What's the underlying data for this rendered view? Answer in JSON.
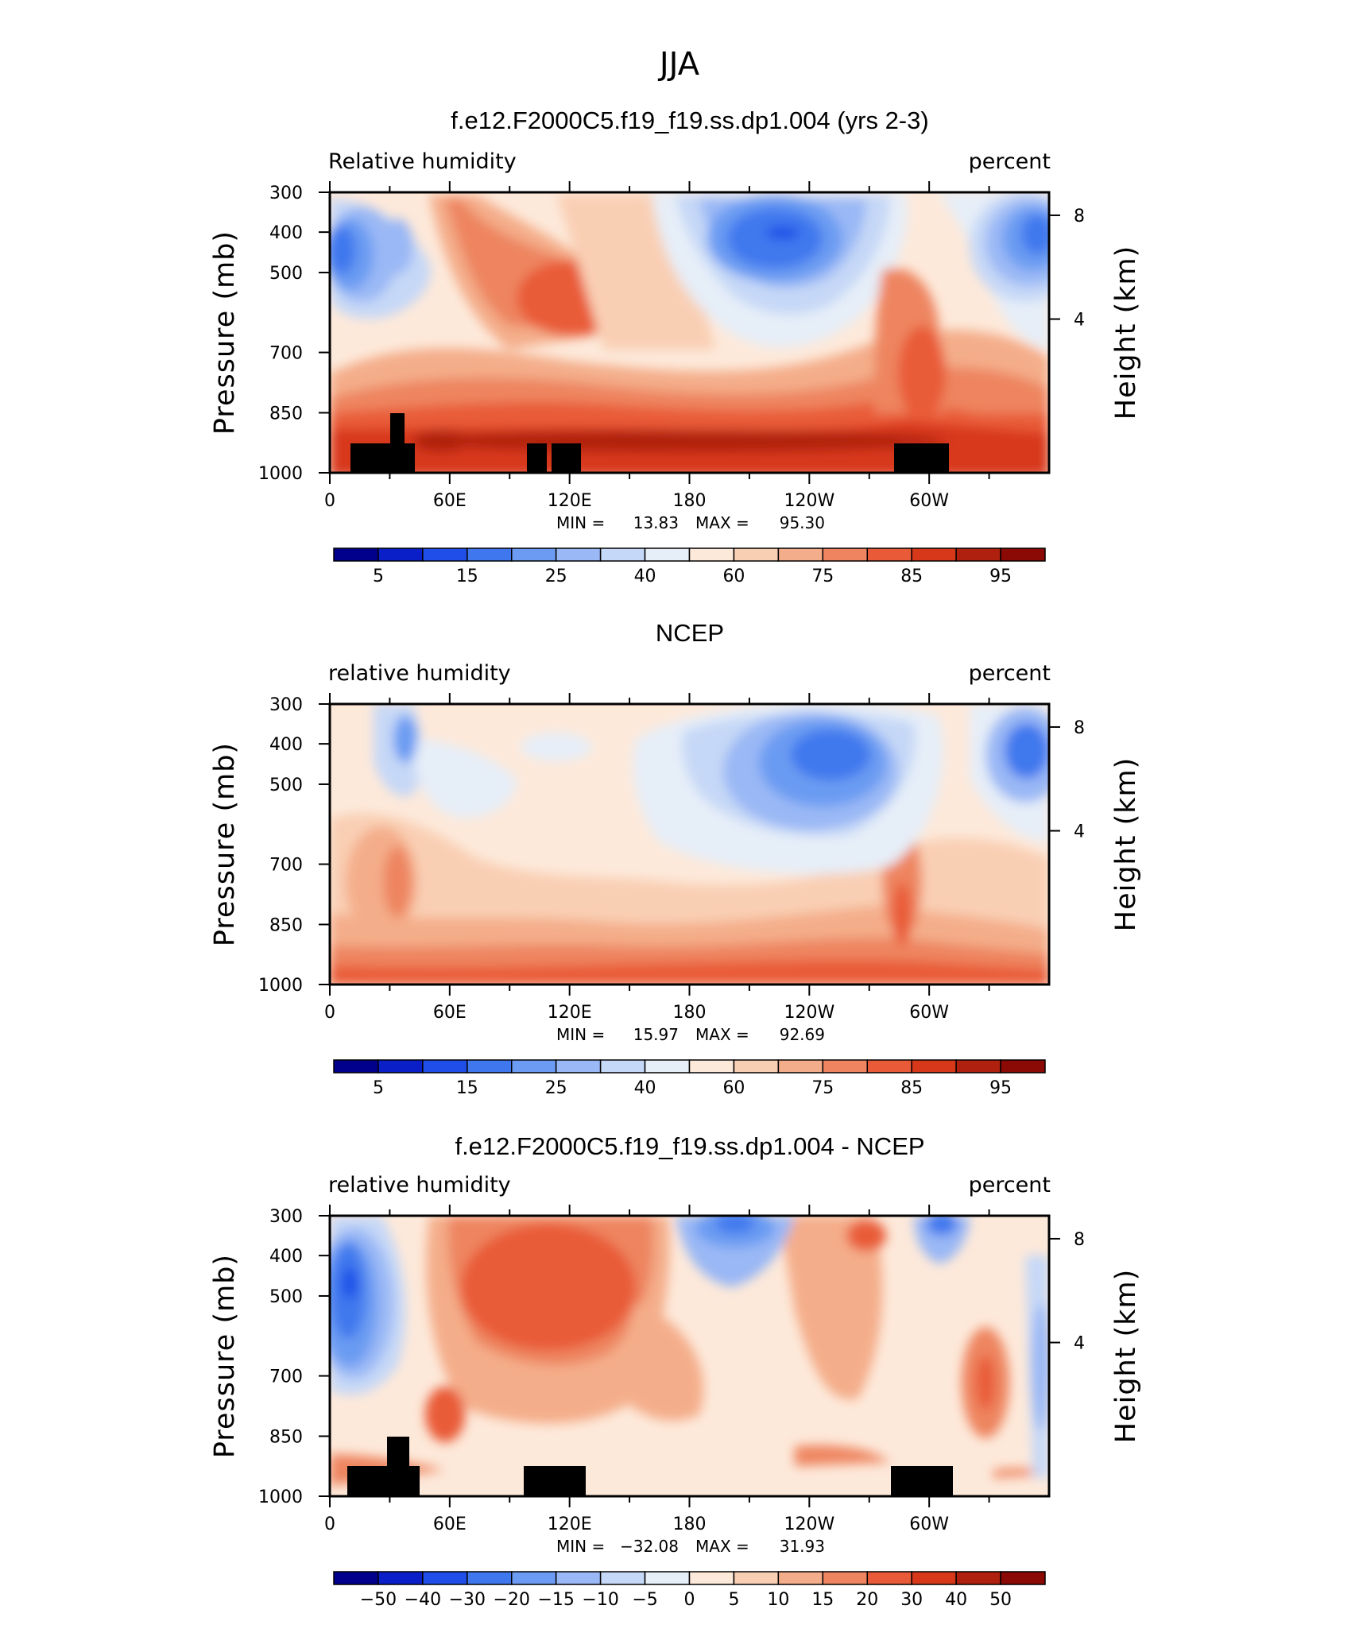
{
  "figure": {
    "title": "JJA"
  },
  "chart_data": [
    {
      "type": "heatmap",
      "panel_title": "f.e12.F2000C5.f19_f19.ss.dp1.004 (yrs 2-3)",
      "left_label": "Relative  humidity",
      "right_label": "percent",
      "ylabel": "Pressure  (mb)",
      "y2label": "Height  (km)",
      "x_ticks": [
        "0",
        "60E",
        "120E",
        "180",
        "120W",
        "60W"
      ],
      "y_ticks": [
        "300",
        "400",
        "500",
        "700",
        "850",
        "1000"
      ],
      "y2_ticks": [
        "8",
        "4"
      ],
      "min_label": "MIN =",
      "min_value": "13.83",
      "max_label": "MAX =",
      "max_value": "95.30",
      "colorbar_levels": [
        "5",
        "15",
        "25",
        "40",
        "60",
        "75",
        "85",
        "95"
      ],
      "colors": [
        "#00008c",
        "#0a1fc8",
        "#1f4fe8",
        "#3f78ee",
        "#6b9bf2",
        "#9ab8f5",
        "#c6d8f7",
        "#e6eef8",
        "#fde9da",
        "#f9cfb4",
        "#f4ad8a",
        "#ee8560",
        "#e95b38",
        "#d8381a",
        "#b0200f",
        "#8b0a05"
      ],
      "notes": "terrain mask shown in black near the surface"
    },
    {
      "type": "heatmap",
      "panel_title": "NCEP",
      "left_label": "relative  humidity",
      "right_label": "percent",
      "ylabel": "Pressure  (mb)",
      "y2label": "Height  (km)",
      "x_ticks": [
        "0",
        "60E",
        "120E",
        "180",
        "120W",
        "60W"
      ],
      "y_ticks": [
        "300",
        "400",
        "500",
        "700",
        "850",
        "1000"
      ],
      "y2_ticks": [
        "8",
        "4"
      ],
      "min_label": "MIN =",
      "min_value": "15.97",
      "max_label": "MAX =",
      "max_value": "92.69",
      "colorbar_levels": [
        "5",
        "15",
        "25",
        "40",
        "60",
        "75",
        "85",
        "95"
      ],
      "colors": [
        "#00008c",
        "#0a1fc8",
        "#1f4fe8",
        "#3f78ee",
        "#6b9bf2",
        "#9ab8f5",
        "#c6d8f7",
        "#e6eef8",
        "#fde9da",
        "#f9cfb4",
        "#f4ad8a",
        "#ee8560",
        "#e95b38",
        "#d8381a",
        "#b0200f",
        "#8b0a05"
      ]
    },
    {
      "type": "heatmap",
      "panel_title": "f.e12.F2000C5.f19_f19.ss.dp1.004 - NCEP",
      "left_label": "relative  humidity",
      "right_label": "percent",
      "ylabel": "Pressure  (mb)",
      "y2label": "Height  (km)",
      "x_ticks": [
        "0",
        "60E",
        "120E",
        "180",
        "120W",
        "60W"
      ],
      "y_ticks": [
        "300",
        "400",
        "500",
        "700",
        "850",
        "1000"
      ],
      "y2_ticks": [
        "8",
        "4"
      ],
      "min_label": "MIN =",
      "min_value": "−32.08",
      "max_label": "MAX =",
      "max_value": "31.93",
      "colorbar_levels": [
        "−50",
        "−40",
        "−30",
        "−20",
        "−15",
        "−10",
        "−5",
        "0",
        "5",
        "10",
        "15",
        "20",
        "30",
        "40",
        "50"
      ],
      "colors": [
        "#00008c",
        "#0a1fc8",
        "#1f4fe8",
        "#3f78ee",
        "#6b9bf2",
        "#9ab8f5",
        "#c6d8f7",
        "#e6eef8",
        "#fde9da",
        "#f9cfb4",
        "#f4ad8a",
        "#ee8560",
        "#e95b38",
        "#d8381a",
        "#b0200f",
        "#8b0a05"
      ]
    }
  ]
}
